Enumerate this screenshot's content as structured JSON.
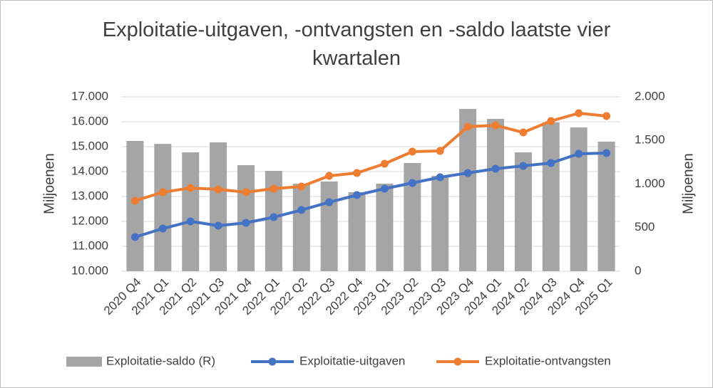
{
  "chart_data": {
    "type": "combo",
    "title": "Exploitatie-uitgaven, -ontvangsten en -saldo laatste vier kwartalen",
    "y_label": "Miljoenen",
    "y2_label": "Miljoenen",
    "categories": [
      "2020 Q4",
      "2021 Q1",
      "2021 Q2",
      "2021 Q3",
      "2021 Q4",
      "2022 Q1",
      "2022 Q2",
      "2022 Q3",
      "2022 Q4",
      "2023 Q1",
      "2023 Q2",
      "2023 Q3",
      "2023 Q4",
      "2024 Q1",
      "2024 Q2",
      "2024 Q3",
      "2024 Q4",
      "2025 Q1"
    ],
    "series": [
      {
        "name": "Exploitatie-saldo (R)",
        "type": "bar",
        "axis": "y2",
        "color": "#a5a5a5",
        "values": [
          1494,
          1460,
          1363,
          1478,
          1216,
          1151,
          1004,
          1029,
          906,
          1004,
          1241,
          1094,
          1861,
          1747,
          1363,
          1706,
          1649,
          1486
        ]
      },
      {
        "name": "Exploitatie-uitgaven",
        "type": "line",
        "color": "#4472c4",
        "values": [
          11371,
          11714,
          12000,
          11829,
          11943,
          12171,
          12457,
          12771,
          13057,
          13314,
          13543,
          13771,
          13943,
          14114,
          14229,
          14343,
          14714,
          14743
        ]
      },
      {
        "name": "Exploitatie-ontvangsten",
        "type": "line",
        "color": "#ed7d31",
        "values": [
          12829,
          13171,
          13343,
          13286,
          13171,
          13314,
          13400,
          13829,
          13943,
          14314,
          14800,
          14829,
          15800,
          15857,
          15571,
          16029,
          16343,
          16229
        ]
      }
    ],
    "ylim": [
      10000,
      17000
    ],
    "yticks": [
      {
        "value": 10000,
        "label": "10.000"
      },
      {
        "value": 11000,
        "label": "11.000"
      },
      {
        "value": 12000,
        "label": "12.000"
      },
      {
        "value": 13000,
        "label": "13.000"
      },
      {
        "value": 14000,
        "label": "14.000"
      },
      {
        "value": 15000,
        "label": "15.000"
      },
      {
        "value": 16000,
        "label": "16.000"
      },
      {
        "value": 17000,
        "label": "17.000"
      }
    ],
    "y2lim": [
      0,
      2000
    ],
    "y2ticks": [
      0,
      500,
      {
        "value": 1000,
        "label": "1.000"
      },
      {
        "value": 1500,
        "label": "1.500"
      },
      {
        "value": 2000,
        "label": "2.000"
      }
    ],
    "grid": true,
    "legend": "bottom"
  }
}
